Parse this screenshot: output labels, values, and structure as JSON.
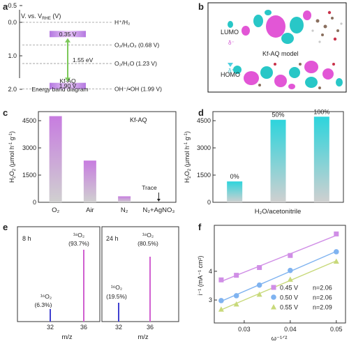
{
  "panels": {
    "a": {
      "letter": "a",
      "axis_title": "V. vs. V",
      "axis_title_sub": "RHE",
      "axis_title_unit": " (V)",
      "ticks": [
        "-0.5",
        "0.0",
        "1.0",
        "2.0"
      ],
      "cb_label": "0.35 V",
      "vb_label": "1.90 V",
      "gap_label": "1.55 eV",
      "material": "Kf-AQ",
      "caption": "Energy band diagram",
      "redox": [
        {
          "label": "H⁺/H₂",
          "value": 0.0
        },
        {
          "label": "O₂/H₂O₂ (0.68 V)",
          "value": 0.68
        },
        {
          "label": "O₂/H₂O (1.23 V)",
          "value": 1.23
        },
        {
          "label": "OH⁻/•OH (1.99 V)",
          "value": 1.99
        }
      ],
      "cb_value": 0.35,
      "vb_value": 1.9
    },
    "b": {
      "letter": "b",
      "lumo": "LUMO",
      "homo": "HOMO",
      "model": "Kf-AQ model",
      "delta_minus": "δ⁻",
      "delta_plus": "δ⁺"
    },
    "c": {
      "letter": "c",
      "legend": "Kf-AQ",
      "annotation": "Trace"
    },
    "d": {
      "letter": "d",
      "xlabel": "H₂O/acetonitrile"
    },
    "e": {
      "letter": "e",
      "left": {
        "time": "8 h",
        "peak16": "¹⁶O₂",
        "pct16": "(6.3%)",
        "peak18": "¹⁸O₂",
        "pct18": "(93.7%)"
      },
      "right": {
        "time": "24 h",
        "peak16": "¹⁶O₂",
        "pct16": "(19.5%)",
        "peak18": "¹⁸O₂",
        "pct18": "(80.5%)"
      },
      "xticks": [
        "32",
        "36"
      ],
      "xlabel": "m/z"
    },
    "f": {
      "letter": "f"
    }
  },
  "chart_data": [
    {
      "type": "bar",
      "panel": "c",
      "categories": [
        "O₂",
        "Air",
        "N₂",
        "N₂+AgNO₃"
      ],
      "values": [
        4750,
        2300,
        330,
        30
      ],
      "ylabel": "H₂O₂ (μmol h⁻¹ g⁻¹)",
      "yticks": [
        0,
        1500,
        3000,
        4500
      ],
      "ylim": [
        0,
        5000
      ],
      "colors": {
        "top": "#c77ce0",
        "bottom": "#c9c9c9"
      }
    },
    {
      "type": "bar",
      "panel": "d",
      "categories": [
        "0%",
        "50%",
        "100%"
      ],
      "values": [
        1150,
        4550,
        4720
      ],
      "xlabel": "H₂O/acetonitrile",
      "ylabel": "H₂O₂ (μmol h⁻¹ g⁻¹)",
      "yticks": [
        0,
        1500,
        3000,
        4500
      ],
      "ylim": [
        0,
        5000
      ],
      "colors": {
        "top": "#2dd4dc",
        "bottom": "#c9c9c9"
      }
    },
    {
      "type": "line",
      "panel": "f",
      "xlabel": "ω⁻¹ᐟ²",
      "ylabel": "i⁻¹ (mA⁻¹ cm²)",
      "xticks": [
        0.03,
        0.04,
        0.05
      ],
      "yticks": [
        3,
        4
      ],
      "xlim": [
        0.0235,
        0.052
      ],
      "ylim": [
        2.2,
        5.6
      ],
      "series": [
        {
          "name": "0.45 V",
          "n_label": "n=2.06",
          "color": "#d08ee6",
          "marker": "square",
          "x": [
            0.025,
            0.0283,
            0.0333,
            0.04,
            0.05
          ],
          "y": [
            3.7,
            3.86,
            4.13,
            4.55,
            5.3
          ]
        },
        {
          "name": "0.50 V",
          "n_label": "n=2.06",
          "color": "#7fb3f0",
          "marker": "circle",
          "x": [
            0.025,
            0.0283,
            0.0333,
            0.04,
            0.05
          ],
          "y": [
            2.98,
            3.15,
            3.52,
            4.03,
            4.68
          ]
        },
        {
          "name": "0.55 V",
          "n_label": "n=2.09",
          "color": "#c8d97a",
          "marker": "triangle",
          "x": [
            0.025,
            0.0283,
            0.0333,
            0.04,
            0.05
          ],
          "y": [
            2.68,
            2.86,
            3.2,
            3.72,
            4.35
          ]
        }
      ]
    }
  ]
}
